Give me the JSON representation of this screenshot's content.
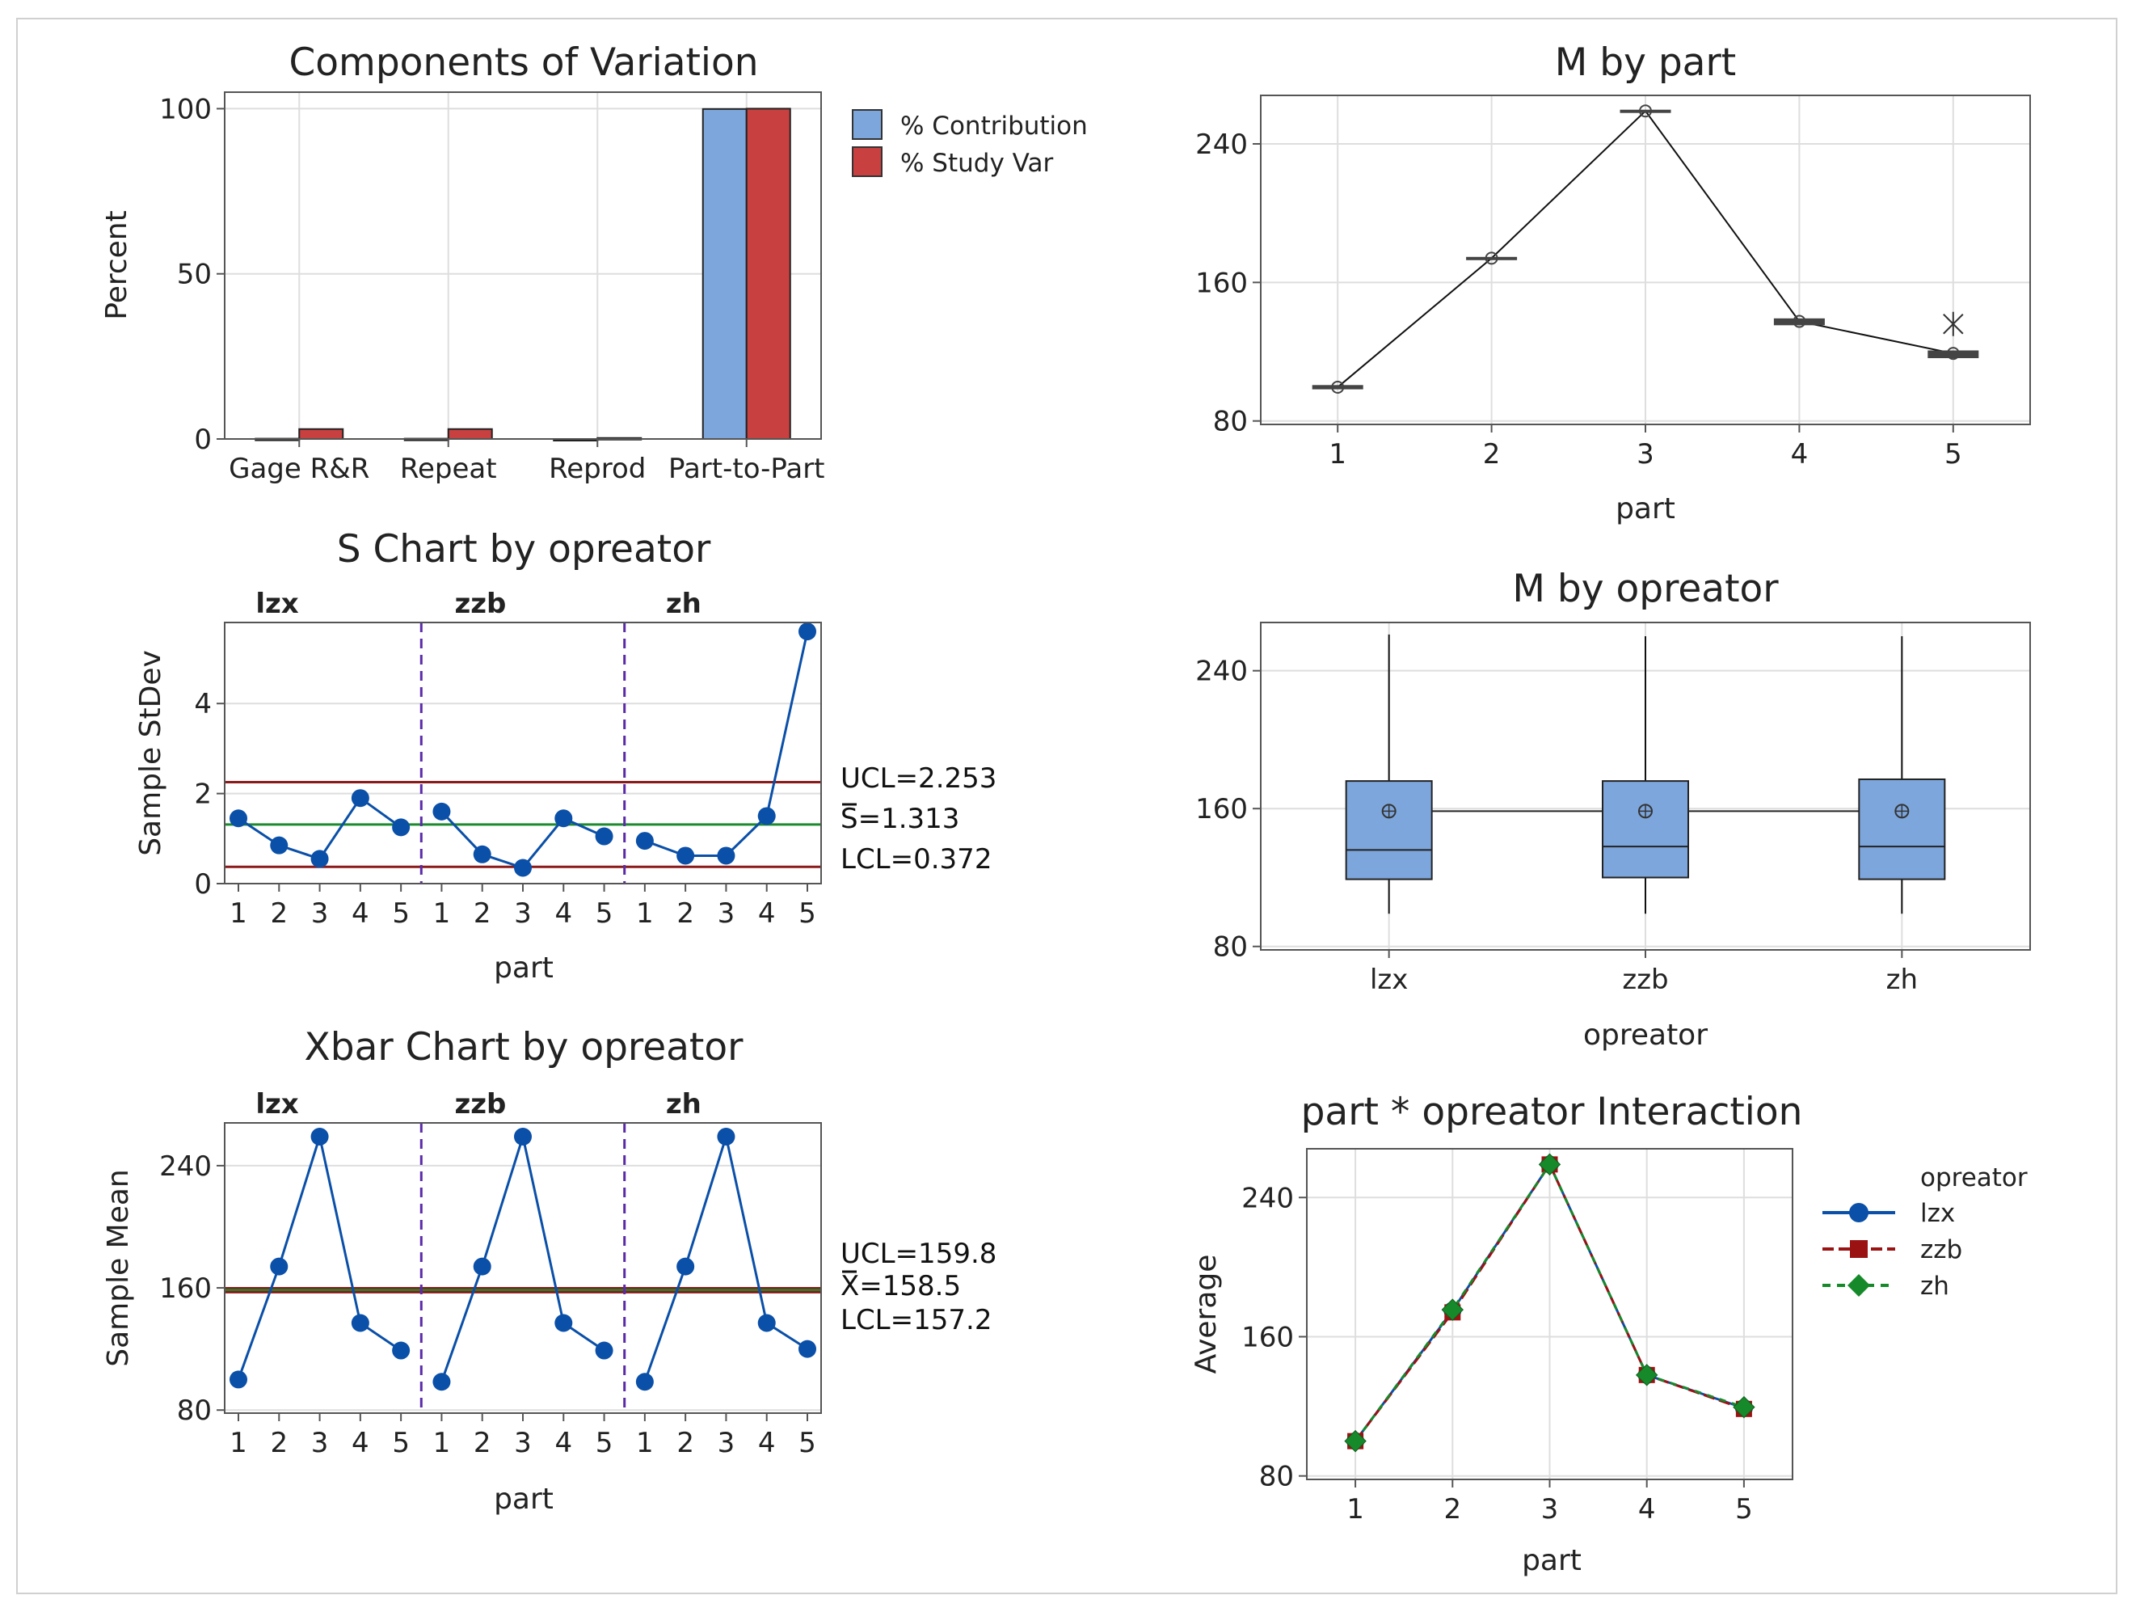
{
  "chart_data": [
    {
      "type": "bar",
      "title": "Components of Variation",
      "ylabel": "Percent",
      "ylim": [
        0,
        105
      ],
      "yticks": [
        0,
        50,
        100
      ],
      "categories": [
        "Gage R&R",
        "Repeat",
        "Reprod",
        "Part-to-Part"
      ],
      "series": [
        {
          "name": "% Contribution",
          "color": "#7da6dc",
          "values": [
            0.1,
            0.1,
            0.0,
            99.9
          ]
        },
        {
          "name": "% Study Var",
          "color": "#c84040",
          "values": [
            3.0,
            3.0,
            0.3,
            100.0
          ]
        }
      ],
      "legend_position": "right"
    },
    {
      "type": "box",
      "title": "M by part",
      "xlabel": "part",
      "ylim": [
        78,
        268
      ],
      "yticks": [
        80,
        160,
        240
      ],
      "categories": [
        "1",
        "2",
        "3",
        "4",
        "5"
      ],
      "means": [
        99.5,
        174,
        259,
        137.5,
        119
      ],
      "box_low": [
        98.5,
        173.5,
        258.5,
        135.5,
        116.5
      ],
      "box_high": [
        100.5,
        174.5,
        259.5,
        139,
        120.5
      ],
      "outliers": [
        null,
        null,
        null,
        null,
        136
      ],
      "joins_means": true
    },
    {
      "type": "line",
      "title": "S Chart by opreator",
      "xlabel": "part",
      "ylabel": "Sample StDev",
      "ylim": [
        0,
        5.8
      ],
      "yticks": [
        0,
        2,
        4
      ],
      "groups": [
        "lzx",
        "zzb",
        "zh"
      ],
      "parts": [
        "1",
        "2",
        "3",
        "4",
        "5"
      ],
      "series": [
        {
          "name": "lzx",
          "values": [
            1.45,
            0.85,
            0.55,
            1.9,
            1.25
          ]
        },
        {
          "name": "zzb",
          "values": [
            1.6,
            0.65,
            0.35,
            1.45,
            1.05
          ]
        },
        {
          "name": "zh",
          "values": [
            0.95,
            0.62,
            0.62,
            1.5,
            5.6
          ]
        }
      ],
      "control_limits": {
        "ucl": 2.253,
        "center": 1.313,
        "lcl": 0.372
      },
      "limit_labels": [
        "UCL=2.253",
        "S=1.313",
        "LCL=0.372"
      ]
    },
    {
      "type": "box",
      "title": "M by opreator",
      "xlabel": "opreator",
      "ylim": [
        78,
        268
      ],
      "yticks": [
        80,
        160,
        240
      ],
      "categories": [
        "lzx",
        "zzb",
        "zh"
      ],
      "means": [
        158.5,
        158.5,
        158.5
      ],
      "q1": [
        119,
        120,
        119
      ],
      "median": [
        136,
        138,
        138
      ],
      "q3": [
        176,
        176,
        177
      ],
      "whisker_low": [
        99,
        99,
        99
      ],
      "whisker_high": [
        261,
        260,
        260
      ]
    },
    {
      "type": "line",
      "title": "Xbar Chart by opreator",
      "xlabel": "part",
      "ylabel": "Sample Mean",
      "ylim": [
        78,
        268
      ],
      "yticks": [
        80,
        160,
        240
      ],
      "groups": [
        "lzx",
        "zzb",
        "zh"
      ],
      "parts": [
        "1",
        "2",
        "3",
        "4",
        "5"
      ],
      "series": [
        {
          "name": "lzx",
          "values": [
            100,
            174,
            259,
            137,
            119
          ]
        },
        {
          "name": "zzb",
          "values": [
            98.5,
            174,
            259,
            137,
            119
          ]
        },
        {
          "name": "zh",
          "values": [
            98.5,
            174,
            259,
            137,
            120
          ]
        }
      ],
      "control_limits": {
        "ucl": 159.8,
        "center": 158.5,
        "lcl": 157.2
      },
      "limit_labels": [
        "UCL=159.8",
        "X=158.5",
        "LCL=157.2"
      ]
    },
    {
      "type": "line",
      "title": "part * opreator Interaction",
      "xlabel": "part",
      "ylabel": "Average",
      "ylim": [
        78,
        268
      ],
      "yticks": [
        80,
        160,
        240
      ],
      "categories": [
        "1",
        "2",
        "3",
        "4",
        "5"
      ],
      "legend_title": "opreator",
      "series": [
        {
          "name": "lzx",
          "color": "#0a4fa8",
          "values": [
            100,
            175,
            259,
            138,
            119
          ]
        },
        {
          "name": "zzb",
          "color": "#9b1212",
          "values": [
            100,
            174,
            259,
            138,
            118.5
          ]
        },
        {
          "name": "zh",
          "color": "#168a2a",
          "values": [
            100,
            175.5,
            259,
            138,
            119.5
          ]
        }
      ],
      "legend_position": "right"
    }
  ]
}
